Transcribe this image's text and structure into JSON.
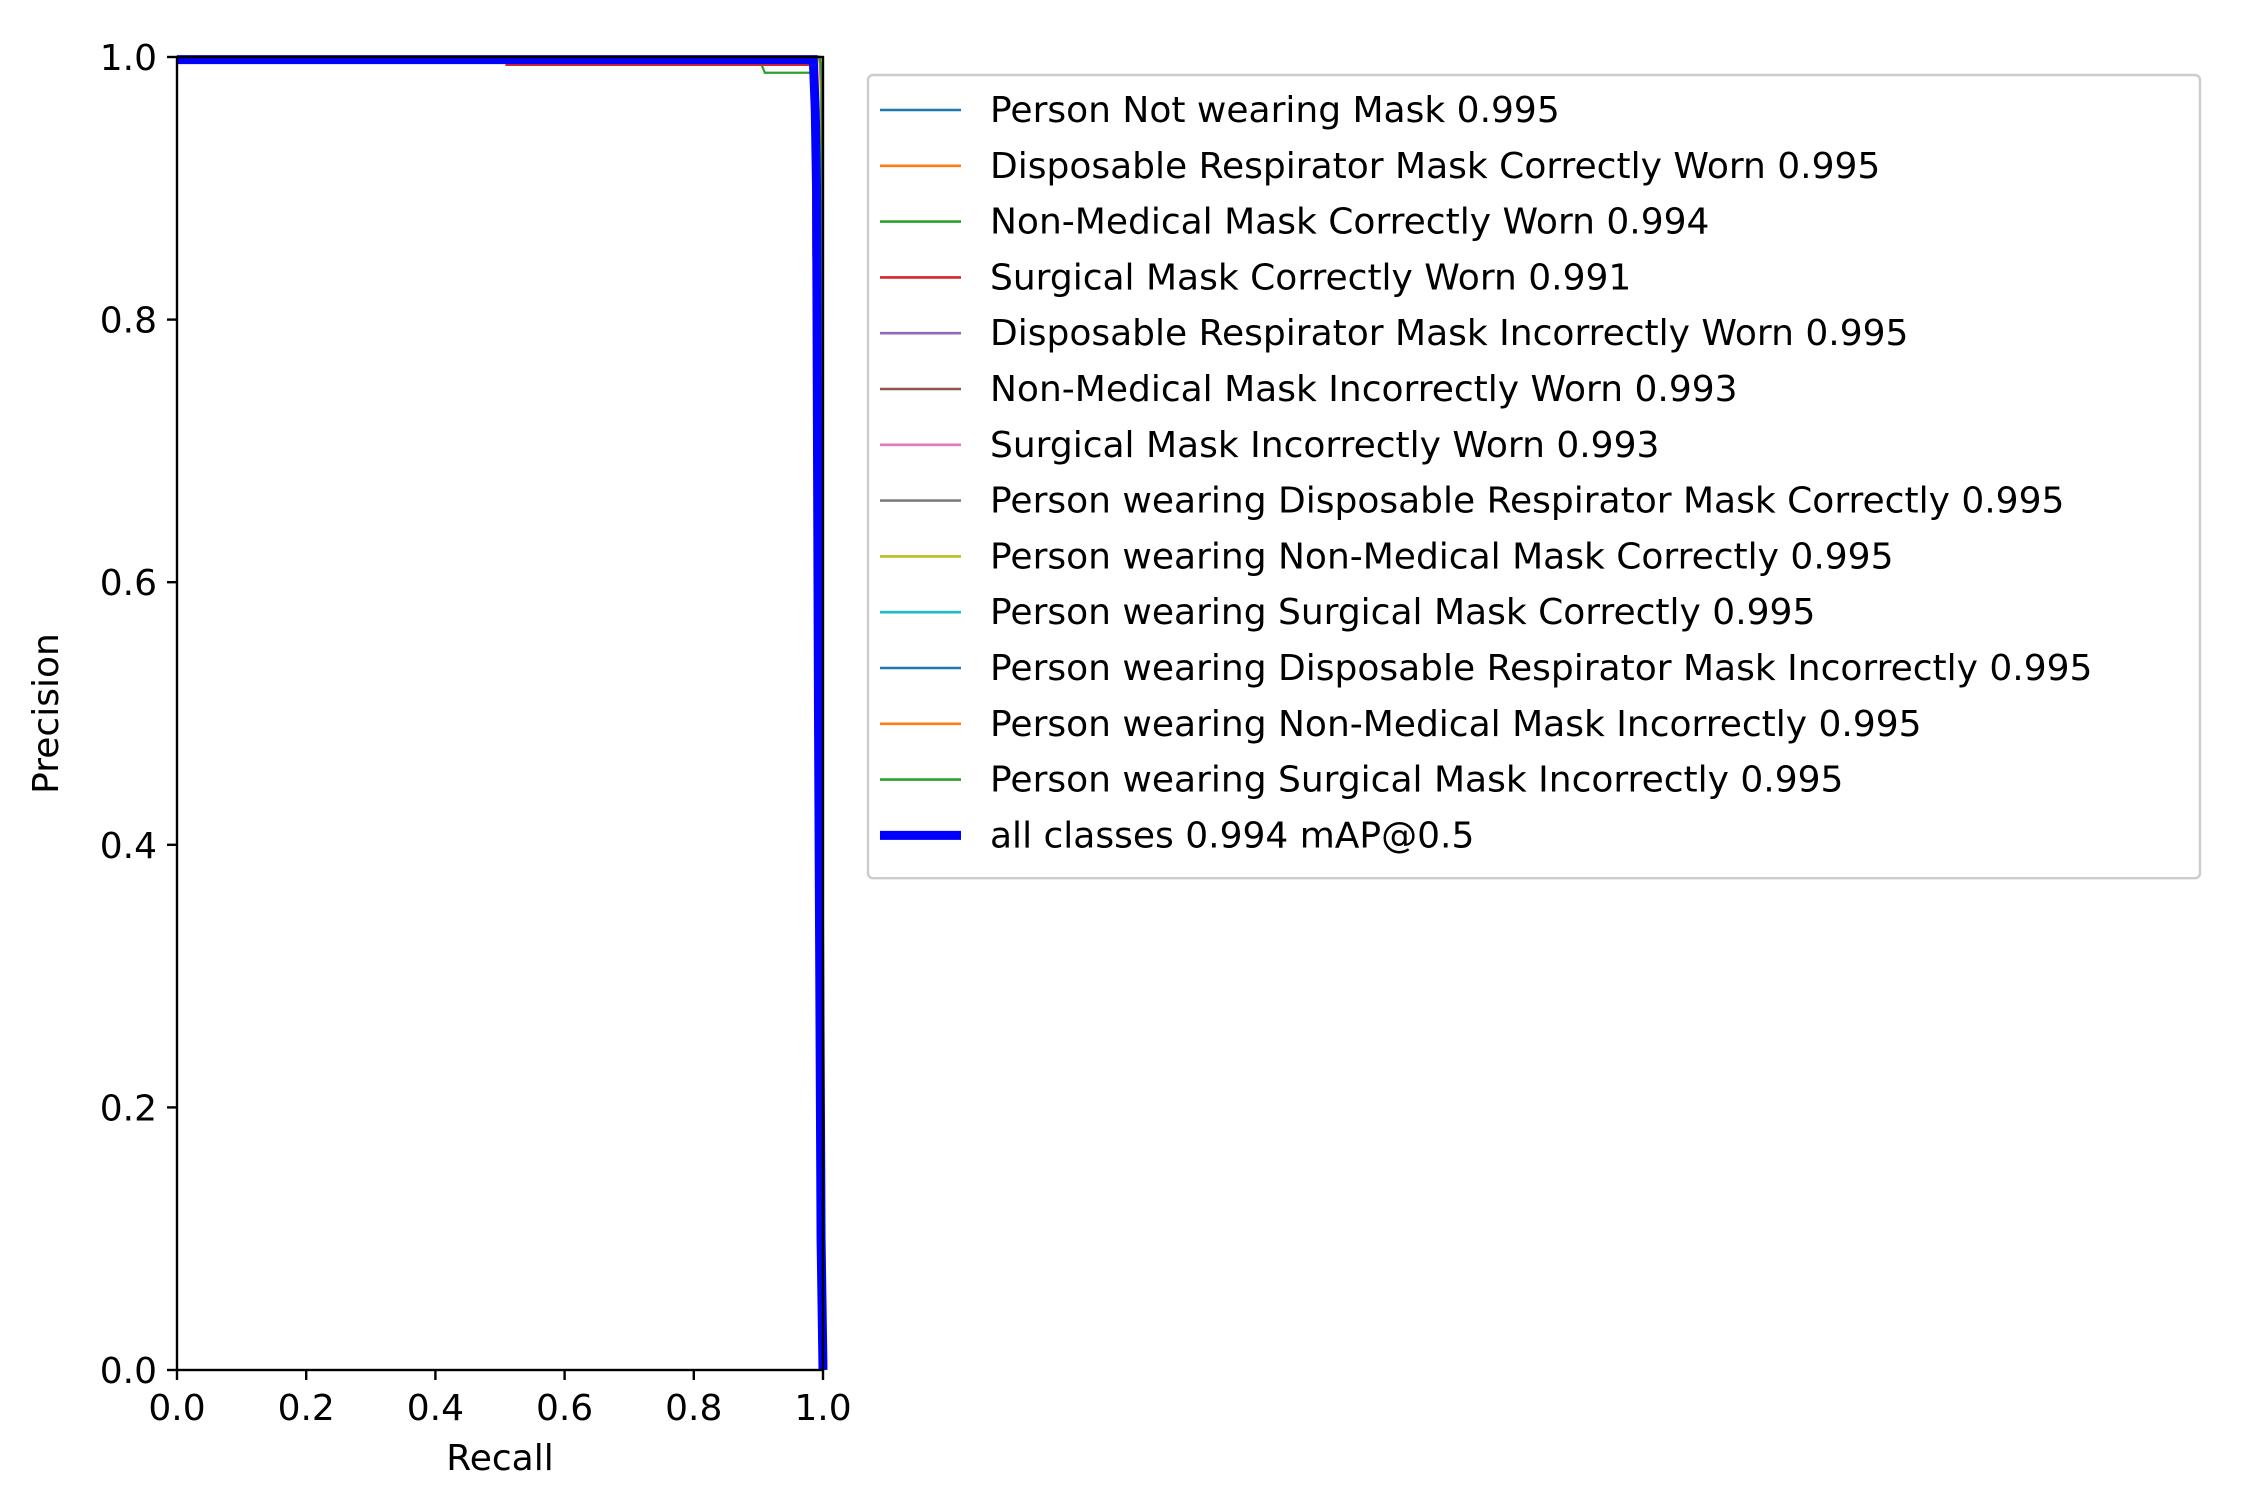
{
  "chart_data": {
    "type": "line",
    "xlabel": "Recall",
    "ylabel": "Precision",
    "xlim": [
      0.0,
      1.0
    ],
    "ylim": [
      0.0,
      1.0
    ],
    "x_ticks": [
      "0.0",
      "0.2",
      "0.4",
      "0.6",
      "0.8",
      "1.0"
    ],
    "y_ticks": [
      "0.0",
      "0.2",
      "0.4",
      "0.6",
      "0.8",
      "1.0"
    ],
    "grid": false,
    "legend_position": "outside-right",
    "series": [
      {
        "name": "Person Not wearing Mask 0.995",
        "color": "#1f77b4",
        "thick": false,
        "points": [
          [
            0.0,
            1.0
          ],
          [
            0.995,
            1.0
          ],
          [
            0.998,
            0.99
          ],
          [
            1.0,
            0.0
          ]
        ]
      },
      {
        "name": "Disposable Respirator Mask Correctly Worn 0.995",
        "color": "#ff7f0e",
        "thick": false,
        "points": [
          [
            0.0,
            1.0
          ],
          [
            0.993,
            1.0
          ],
          [
            0.995,
            0.995
          ],
          [
            0.997,
            0.97
          ],
          [
            1.0,
            0.0
          ]
        ]
      },
      {
        "name": "Non-Medical Mask Correctly Worn 0.994",
        "color": "#2ca02c",
        "thick": false,
        "points": [
          [
            0.0,
            1.0
          ],
          [
            0.9,
            1.0
          ],
          [
            0.91,
            0.988
          ],
          [
            0.985,
            0.988
          ],
          [
            0.99,
            0.98
          ],
          [
            1.0,
            0.0
          ]
        ]
      },
      {
        "name": "Surgical Mask Correctly Worn 0.991",
        "color": "#d62728",
        "thick": false,
        "points": [
          [
            0.0,
            1.0
          ],
          [
            0.51,
            1.0
          ],
          [
            0.51,
            0.994
          ],
          [
            0.985,
            0.994
          ],
          [
            0.985,
            0.85
          ],
          [
            0.99,
            0.8
          ],
          [
            1.0,
            0.0
          ]
        ]
      },
      {
        "name": "Disposable Respirator Mask Incorrectly Worn 0.995",
        "color": "#9467bd",
        "thick": false,
        "points": [
          [
            0.0,
            1.0
          ],
          [
            0.995,
            1.0
          ],
          [
            0.998,
            0.98
          ],
          [
            1.0,
            0.0
          ]
        ]
      },
      {
        "name": "Non-Medical Mask Incorrectly Worn 0.993",
        "color": "#8c564b",
        "thick": false,
        "points": [
          [
            0.0,
            1.0
          ],
          [
            0.987,
            1.0
          ],
          [
            0.99,
            0.995
          ],
          [
            0.99,
            0.85
          ],
          [
            1.0,
            0.0
          ]
        ]
      },
      {
        "name": "Surgical Mask Incorrectly Worn 0.993",
        "color": "#e377c2",
        "thick": false,
        "points": [
          [
            0.0,
            1.0
          ],
          [
            0.988,
            1.0
          ],
          [
            0.99,
            0.99
          ],
          [
            0.99,
            0.79
          ],
          [
            1.0,
            0.0
          ]
        ]
      },
      {
        "name": "Person wearing Disposable Respirator Mask Correctly 0.995",
        "color": "#7f7f7f",
        "thick": false,
        "points": [
          [
            0.0,
            1.0
          ],
          [
            0.995,
            1.0
          ],
          [
            0.998,
            0.99
          ],
          [
            1.0,
            0.0
          ]
        ]
      },
      {
        "name": "Person wearing Non-Medical Mask Correctly 0.995",
        "color": "#bcbd22",
        "thick": false,
        "points": [
          [
            0.0,
            1.0
          ],
          [
            0.995,
            1.0
          ],
          [
            0.998,
            0.99
          ],
          [
            1.0,
            0.0
          ]
        ]
      },
      {
        "name": "Person wearing Surgical Mask Correctly 0.995",
        "color": "#17becf",
        "thick": false,
        "points": [
          [
            0.0,
            1.0
          ],
          [
            0.995,
            1.0
          ],
          [
            0.998,
            0.99
          ],
          [
            1.0,
            0.0
          ]
        ]
      },
      {
        "name": "Person wearing Disposable Respirator Mask Incorrectly 0.995",
        "color": "#1f77b4",
        "thick": false,
        "points": [
          [
            0.0,
            1.0
          ],
          [
            0.995,
            1.0
          ],
          [
            0.998,
            0.99
          ],
          [
            1.0,
            0.0
          ]
        ]
      },
      {
        "name": "Person wearing Non-Medical Mask Incorrectly 0.995",
        "color": "#ff7f0e",
        "thick": false,
        "points": [
          [
            0.0,
            1.0
          ],
          [
            0.995,
            1.0
          ],
          [
            0.998,
            0.99
          ],
          [
            1.0,
            0.0
          ]
        ]
      },
      {
        "name": "Person wearing Surgical Mask Incorrectly 0.995",
        "color": "#2ca02c",
        "thick": false,
        "points": [
          [
            0.0,
            1.0
          ],
          [
            0.995,
            1.0
          ],
          [
            0.998,
            0.99
          ],
          [
            1.0,
            0.0
          ]
        ]
      },
      {
        "name": "all classes 0.994 mAP@0.5",
        "color": "#0000ff",
        "thick": true,
        "points": [
          [
            0.0,
            0.998
          ],
          [
            0.985,
            0.998
          ],
          [
            0.988,
            0.96
          ],
          [
            0.99,
            0.9
          ],
          [
            0.993,
            0.5
          ],
          [
            0.997,
            0.1
          ],
          [
            1.0,
            0.0
          ]
        ]
      }
    ]
  }
}
